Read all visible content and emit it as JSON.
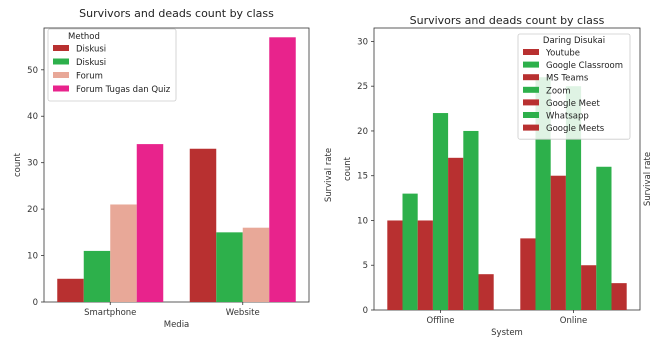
{
  "chart_data": [
    {
      "type": "bar",
      "title": "Survivors and deads count by class",
      "xlabel": "Media",
      "ylabel": "count",
      "side_label": "Survival rate",
      "categories": [
        "Smartphone",
        "Website"
      ],
      "ylim": [
        0,
        59
      ],
      "yticks": [
        0,
        10,
        20,
        30,
        40,
        50
      ],
      "legend_title": "Method",
      "legend_position": "top-left",
      "series": [
        {
          "name": "Diskusi",
          "color": "#b83030",
          "values": [
            5,
            33
          ]
        },
        {
          "name": "Diskusi",
          "color": "#2db04b",
          "values": [
            11,
            15
          ]
        },
        {
          "name": "Forum",
          "color": "#e8a898",
          "values": [
            21,
            16
          ]
        },
        {
          "name": "Forum Tugas dan Quiz",
          "color": "#e8238c",
          "values": [
            34,
            57
          ]
        }
      ]
    },
    {
      "type": "bar",
      "title": "Survivors and deads count by class",
      "xlabel": "System",
      "ylabel": "count",
      "side_label": "Survival rate",
      "categories": [
        "Offline",
        "Online"
      ],
      "ylim": [
        0,
        31.5
      ],
      "yticks": [
        0,
        5,
        10,
        15,
        20,
        25,
        30
      ],
      "legend_title": "Daring Disukai",
      "legend_position": "top-right",
      "series": [
        {
          "name": "Youtube",
          "color": "#b83030",
          "values": [
            10,
            8
          ]
        },
        {
          "name": "Google Classroom",
          "color": "#2db04b",
          "values": [
            13,
            26
          ]
        },
        {
          "name": "MS Teams",
          "color": "#b83030",
          "values": [
            10,
            15
          ]
        },
        {
          "name": "Zoom",
          "color": "#2db04b",
          "values": [
            22,
            25
          ]
        },
        {
          "name": "Google Meet",
          "color": "#b83030",
          "values": [
            17,
            5
          ]
        },
        {
          "name": "Whatsapp",
          "color": "#2db04b",
          "values": [
            20,
            16
          ]
        },
        {
          "name": "Google Meets",
          "color": "#b83030",
          "values": [
            4,
            3
          ]
        }
      ]
    }
  ]
}
